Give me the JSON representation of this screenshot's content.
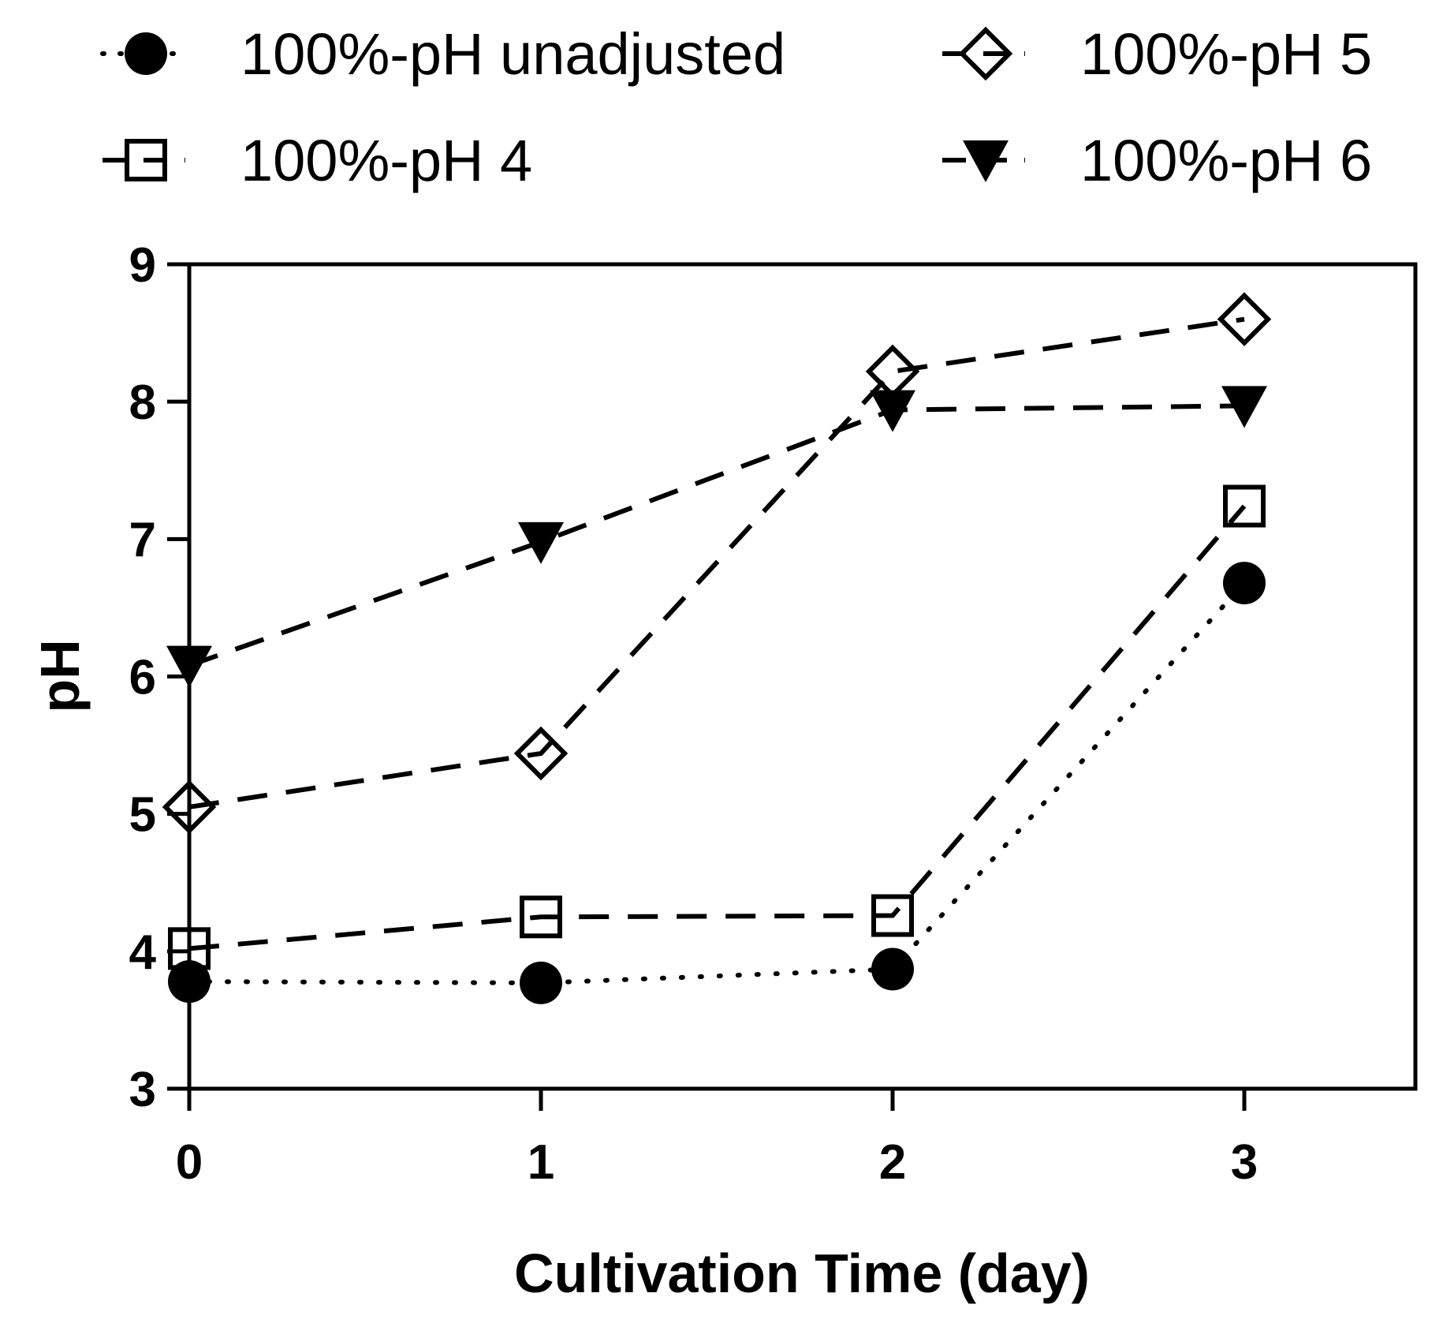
{
  "chart_data": {
    "type": "line",
    "title": "",
    "xlabel": "Cultivation Time (day)",
    "ylabel": "pH",
    "xlim": [
      0,
      3.5
    ],
    "ylim": [
      3,
      9
    ],
    "x_ticks": [
      "0",
      "1",
      "2",
      "3"
    ],
    "y_ticks": [
      "3",
      "4",
      "5",
      "6",
      "7",
      "8",
      "9"
    ],
    "x": [
      0,
      1,
      2,
      3
    ],
    "legend_position": "top",
    "series": [
      {
        "name": "100%-pH unadjusted",
        "marker": "circle-filled",
        "line": "dotted",
        "values": [
          3.78,
          3.77,
          3.87,
          6.68
        ]
      },
      {
        "name": "100%-pH 4",
        "marker": "square-open",
        "line": "dashed",
        "values": [
          4.02,
          4.25,
          4.26,
          7.24
        ]
      },
      {
        "name": "100%-pH 5",
        "marker": "diamond-open",
        "line": "dashed",
        "values": [
          5.05,
          5.44,
          8.22,
          8.6
        ]
      },
      {
        "name": "100%-pH 6",
        "marker": "triangle-down-filled",
        "line": "dashed",
        "values": [
          6.08,
          6.98,
          7.94,
          7.97
        ]
      }
    ]
  }
}
